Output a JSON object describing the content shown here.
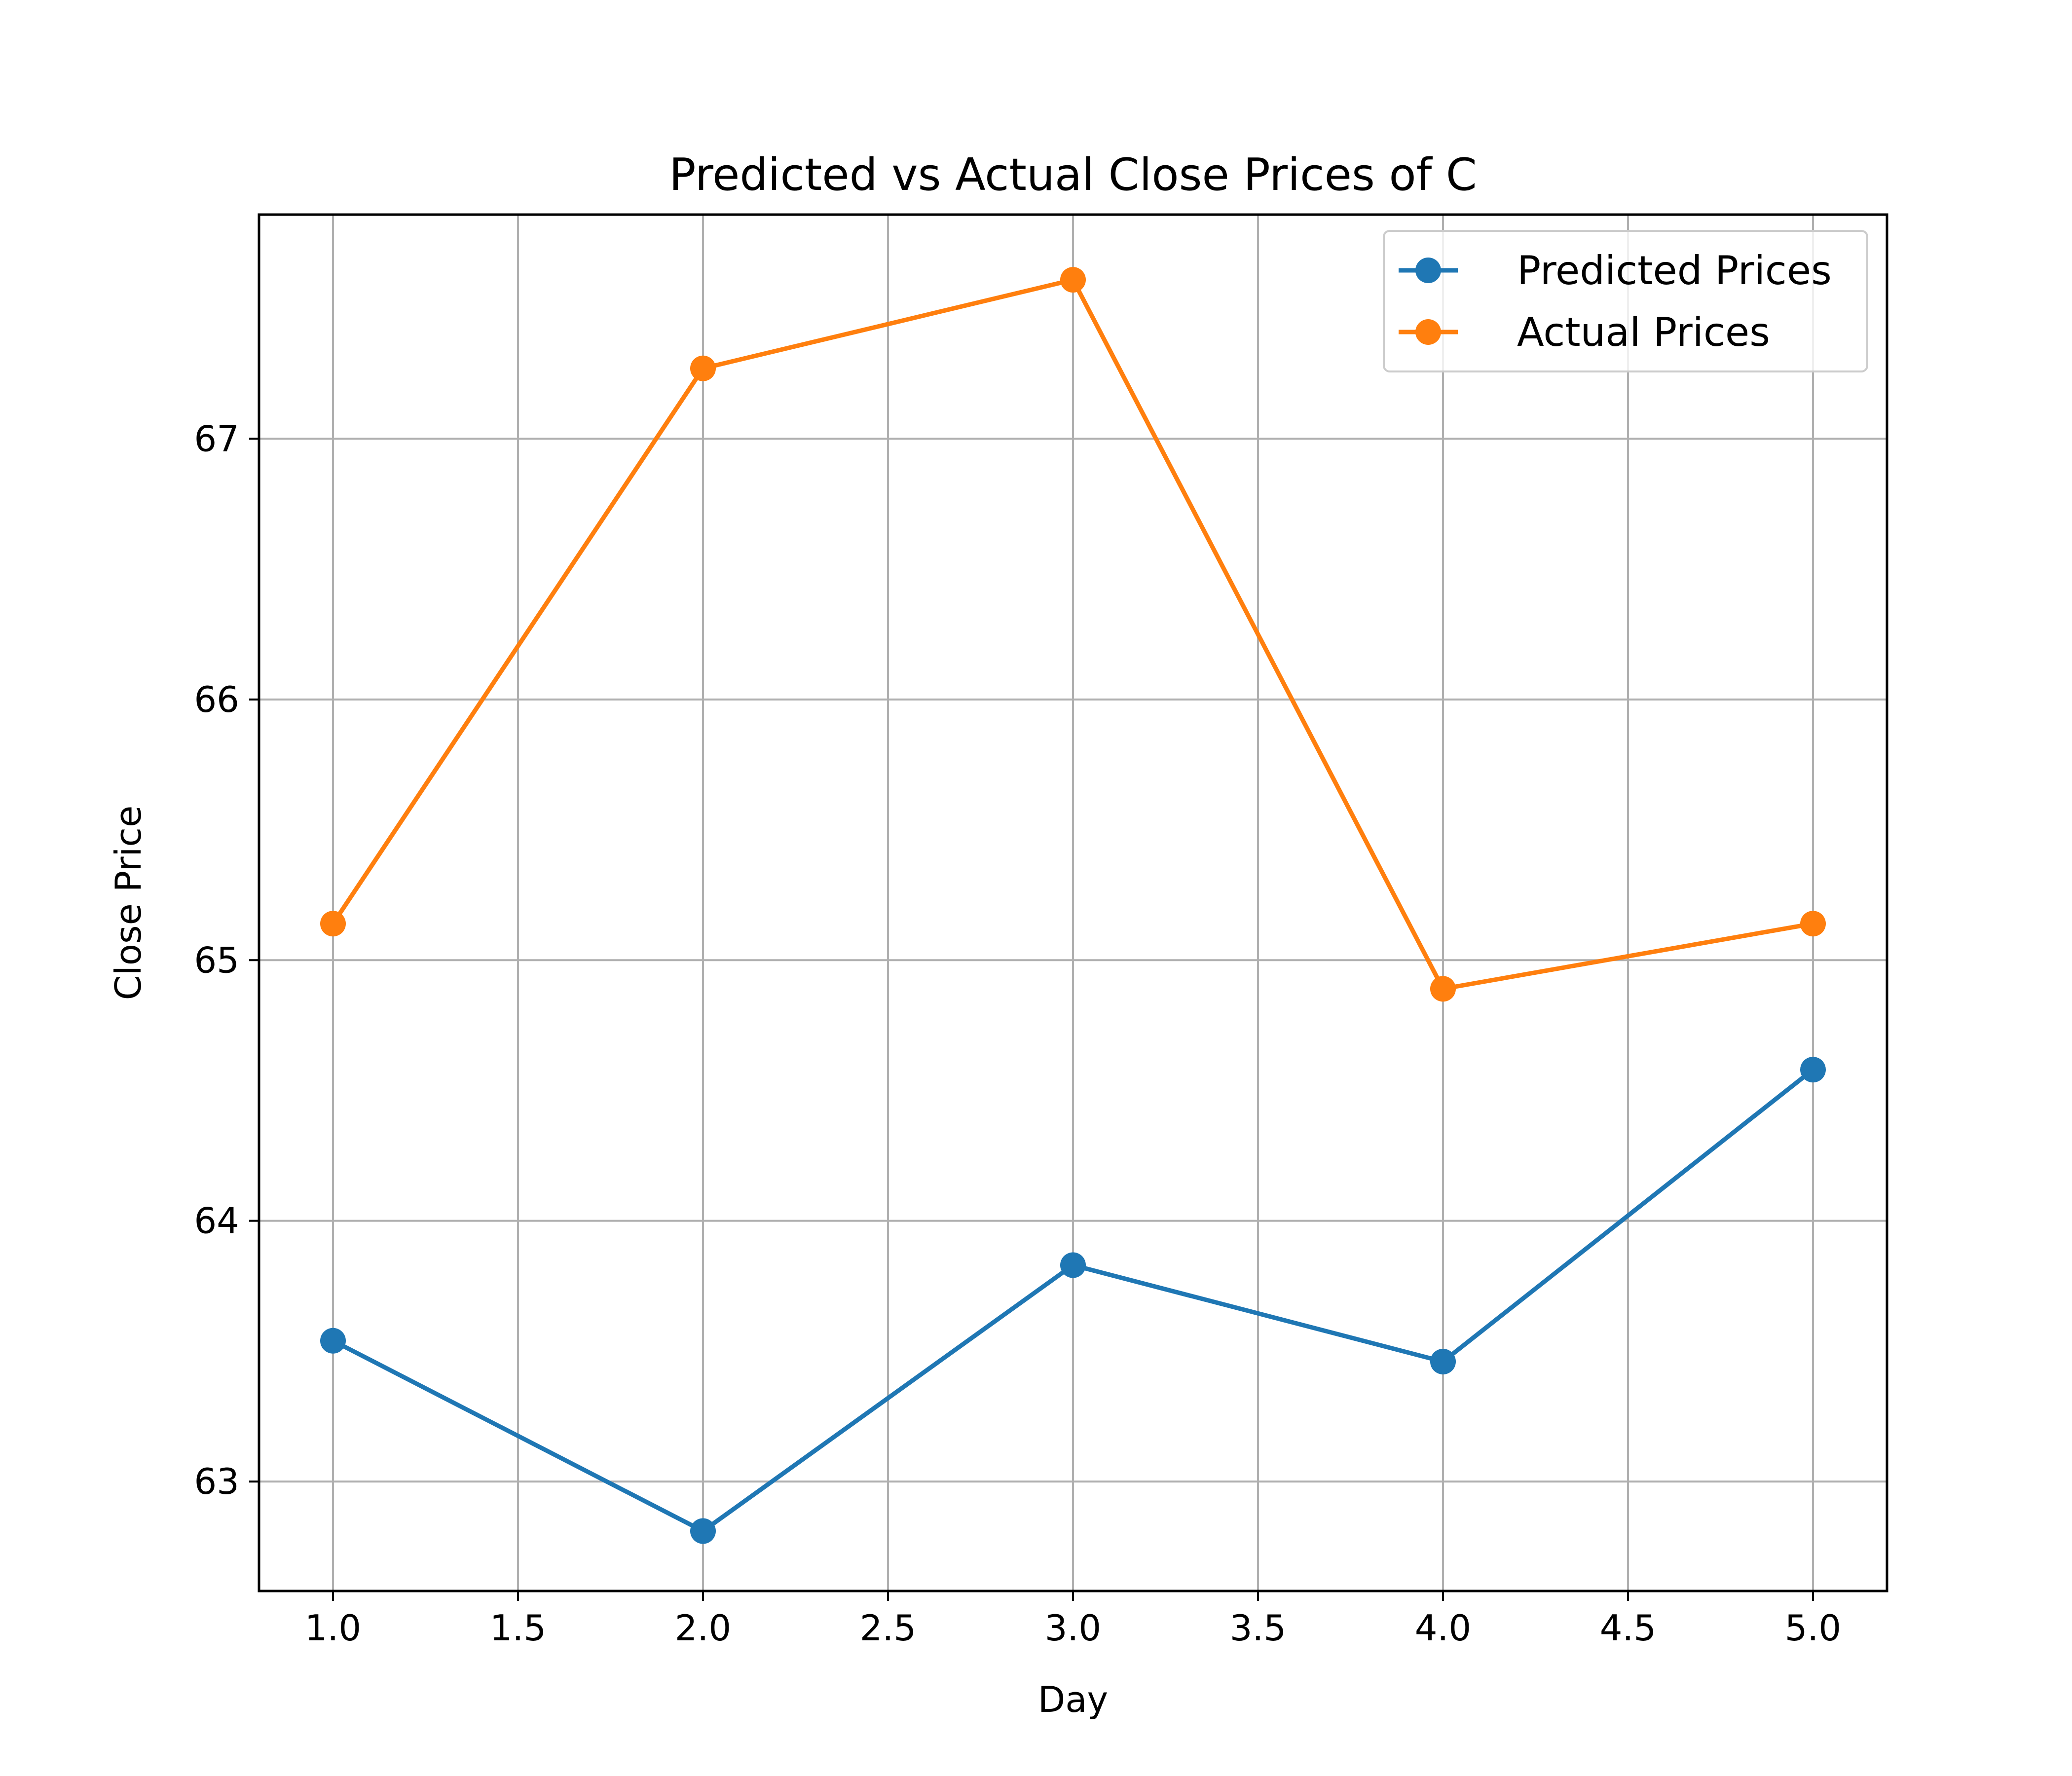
{
  "chart_data": {
    "type": "line",
    "title": "Predicted vs Actual Close Prices of C",
    "xlabel": "Day",
    "ylabel": "Close Price",
    "x": [
      1,
      2,
      3,
      4,
      5
    ],
    "series": [
      {
        "name": "Predicted Prices",
        "color": "#1f77b4",
        "values": [
          63.54,
          62.81,
          63.83,
          63.46,
          64.58
        ]
      },
      {
        "name": "Actual Prices",
        "color": "#ff7f0e",
        "values": [
          65.14,
          67.27,
          67.61,
          64.89,
          65.14
        ]
      }
    ],
    "xlim": [
      0.8,
      5.2
    ],
    "ylim": [
      62.58,
      67.86
    ],
    "xticks": [
      1.0,
      1.5,
      2.0,
      2.5,
      3.0,
      3.5,
      4.0,
      4.5,
      5.0
    ],
    "xtick_labels": [
      "1.0",
      "1.5",
      "2.0",
      "2.5",
      "3.0",
      "3.5",
      "4.0",
      "4.5",
      "5.0"
    ],
    "yticks": [
      63,
      64,
      65,
      66,
      67
    ],
    "ytick_labels": [
      "63",
      "64",
      "65",
      "66",
      "67"
    ],
    "grid": true,
    "legend_position": "top-right"
  }
}
